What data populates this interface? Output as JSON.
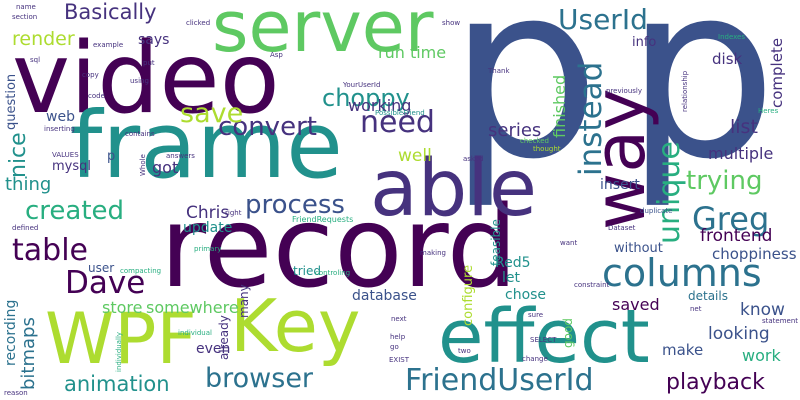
{
  "title": "",
  "words": {
    "p1": "p",
    "p2": "p",
    "record": "record",
    "video": "video",
    "frame": "frame",
    "able": "able",
    "server": "server",
    "way": "way",
    "effect": "effect",
    "Key": "Key",
    "WPF": "WPF",
    "columns": "columns",
    "FriendUserId": "FriendUserId",
    "browser": "browser",
    "animation": "animation",
    "table": "table",
    "Dave": "Dave",
    "created": "created",
    "process": "process",
    "convert": "convert",
    "need": "need",
    "save": "save",
    "choppy": "choppy",
    "UserId": "UserId",
    "unique": "unique",
    "instead": "instead",
    "Greg": "Greg",
    "trying": "trying",
    "playback": "playback",
    "Basically": "Basically",
    "render": "render",
    "nice": "nice",
    "thing": "thing",
    "series": "series",
    "list": "list",
    "multiple": "multiple",
    "frontend": "frontend",
    "run_time": "run time",
    "finished": "finished",
    "complete": "complete",
    "working": "working",
    "well": "well",
    "got": "got",
    "Chris": "Chris",
    "update": "update",
    "store": "store",
    "somewhere": "somewhere",
    "database": "database",
    "chose": "chose",
    "let": "let",
    "Red5": "Red5",
    "saved": "saved",
    "details": "details",
    "know": "know",
    "looking": "looking",
    "make": "make",
    "work": "work",
    "even": "even",
    "recording": "recording",
    "bitmaps": "bitmaps",
    "question": "question",
    "web": "web",
    "mysql": "mysql",
    "says": "says",
    "insert": "insert",
    "disk": "disk",
    "info": "info",
    "choppiness": "choppiness",
    "without": "without",
    "configure": "configure",
    "feasible": "feasible",
    "tried": "tried",
    "already": "already",
    "many": "many",
    "user": "user",
    "good": "good",
    "right": "right",
    "FriendRequests": "FriendRequests",
    "PossibleFriend": "PossibleFriend",
    "YourUserId": "YourUserId",
    "Asp": "Asp",
    "Thank": "Thank",
    "previously": "previously",
    "relationship": "relationship",
    "Indexes": "Indexes",
    "Heres": "Heres",
    "checked": "checked",
    "thought": "thought",
    "asked": "asked",
    "Dataset": "Dataset",
    "duplicate": "duplicate",
    "constraint": "constraint",
    "net": "net",
    "want": "want",
    "statement": "statement",
    "sure": "sure",
    "SELECT": "SELECT",
    "change": "change",
    "two": "two",
    "help": "help",
    "go": "go",
    "EXIST": "EXIST",
    "next": "next",
    "making": "making",
    "controling": "controling",
    "primary": "primary",
    "individual": "individual",
    "individually": "individually",
    "compacting": "compacting",
    "defined": "defined",
    "reason": "reason",
    "name": "name",
    "section": "section",
    "clicked": "clicked",
    "example": "example",
    "sql": "sql",
    "copy": "copy",
    "code": "code",
    "put": "put",
    "using": "using",
    "contains": "contains",
    "answers": "answers",
    "Whole": "Whole",
    "VALUES": "VALUES",
    "inserting": "inserting",
    "show": "show",
    "p3": "p"
  }
}
